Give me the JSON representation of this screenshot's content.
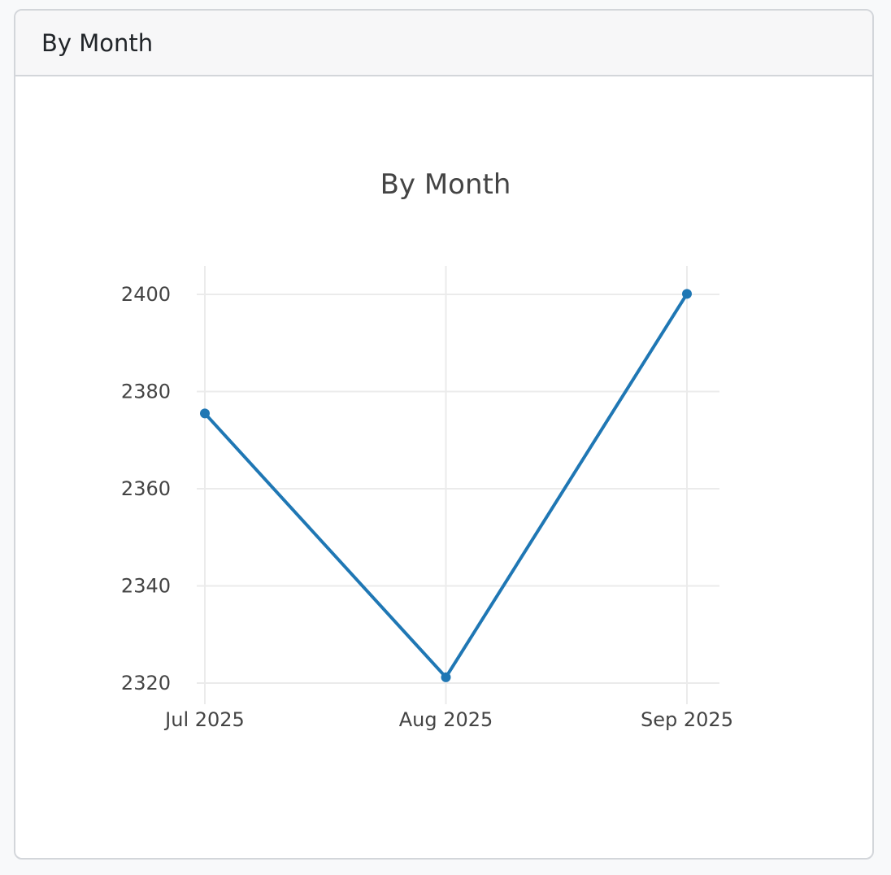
{
  "card": {
    "header_title": "By Month"
  },
  "colors": {
    "line": "#1f77b4",
    "grid": "#ebebeb",
    "text": "#444444"
  },
  "chart_data": {
    "type": "line",
    "title": "By Month",
    "xlabel": "",
    "ylabel": "",
    "x": [
      "Jul 2025",
      "Aug 2025",
      "Sep 2025"
    ],
    "series": [
      {
        "values": [
          2375.5,
          2321.2,
          2400.1
        ]
      }
    ],
    "ylim": [
      2316,
      2406
    ],
    "yticks": [
      2320,
      2340,
      2360,
      2380,
      2400
    ],
    "grid": true,
    "legend": "none",
    "markers": true
  }
}
